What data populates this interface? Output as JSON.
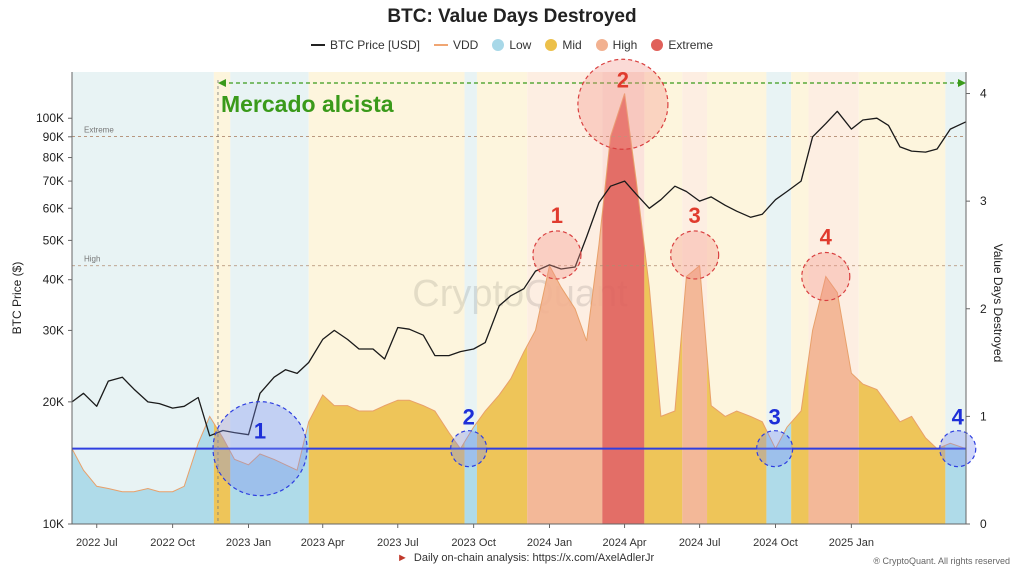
{
  "chart_data": {
    "type": "area",
    "title": "BTC: Value Days Destroyed",
    "legend": {
      "placement": "top-center",
      "items": [
        {
          "label": "BTC Price [USD]",
          "kind": "line",
          "color": "#222222"
        },
        {
          "label": "VDD",
          "kind": "line",
          "color": "#f0a673"
        },
        {
          "label": "Low",
          "kind": "dot",
          "color": "#a8d8e8"
        },
        {
          "label": "Mid",
          "kind": "dot",
          "color": "#ecc04a"
        },
        {
          "label": "High",
          "kind": "dot",
          "color": "#f2b190"
        },
        {
          "label": "Extreme",
          "kind": "dot",
          "color": "#e0605a"
        }
      ]
    },
    "y_left": {
      "label": "BTC Price ($)",
      "scale": "log",
      "range": [
        10000,
        130000
      ],
      "ticks": [
        {
          "label": "10K",
          "value": 10000
        },
        {
          "label": "20K",
          "value": 20000
        },
        {
          "label": "30K",
          "value": 30000
        },
        {
          "label": "40K",
          "value": 40000
        },
        {
          "label": "50K",
          "value": 50000
        },
        {
          "label": "60K",
          "value": 60000
        },
        {
          "label": "70K",
          "value": 70000
        },
        {
          "label": "80K",
          "value": 80000
        },
        {
          "label": "90K",
          "value": 90000
        },
        {
          "label": "100K",
          "value": 100000
        }
      ]
    },
    "y_right": {
      "label": "Value Days Destroyed",
      "range": [
        0,
        4.2
      ],
      "ticks": [
        "0",
        "1",
        "2",
        "3",
        "4"
      ]
    },
    "x_axis": {
      "range": [
        "2022-06-01",
        "2025-05-20"
      ],
      "ticks": [
        {
          "label": "2022 Jul",
          "date": "2022-07-01"
        },
        {
          "label": "2022 Oct",
          "date": "2022-10-01"
        },
        {
          "label": "2023 Jan",
          "date": "2023-01-01"
        },
        {
          "label": "2023 Apr",
          "date": "2023-04-01"
        },
        {
          "label": "2023 Jul",
          "date": "2023-07-01"
        },
        {
          "label": "2023 Oct",
          "date": "2023-10-01"
        },
        {
          "label": "2024 Jan",
          "date": "2024-01-01"
        },
        {
          "label": "2024 Apr",
          "date": "2024-04-01"
        },
        {
          "label": "2024 Jul",
          "date": "2024-07-01"
        },
        {
          "label": "2024 Oct",
          "date": "2024-10-01"
        },
        {
          "label": "2025 Jan",
          "date": "2025-01-01"
        }
      ]
    },
    "thresholds": [
      {
        "label": "Extreme",
        "vdd": 3.6
      },
      {
        "label": "High",
        "vdd": 2.4
      },
      {
        "label": "",
        "vdd": 0.7,
        "color": "#2f3fe0"
      }
    ],
    "btc_price": {
      "dates": [
        "2022-06-01",
        "2022-06-15",
        "2022-07-01",
        "2022-07-15",
        "2022-08-01",
        "2022-08-15",
        "2022-09-01",
        "2022-09-15",
        "2022-10-01",
        "2022-10-15",
        "2022-11-01",
        "2022-11-15",
        "2022-12-01",
        "2022-12-15",
        "2023-01-01",
        "2023-01-15",
        "2023-02-01",
        "2023-02-15",
        "2023-03-01",
        "2023-03-15",
        "2023-04-01",
        "2023-04-15",
        "2023-05-01",
        "2023-05-15",
        "2023-06-01",
        "2023-06-15",
        "2023-07-01",
        "2023-07-15",
        "2023-08-01",
        "2023-08-15",
        "2023-09-01",
        "2023-09-15",
        "2023-10-01",
        "2023-10-15",
        "2023-11-01",
        "2023-11-15",
        "2023-12-01",
        "2023-12-15",
        "2024-01-01",
        "2024-01-15",
        "2024-02-01",
        "2024-02-15",
        "2024-03-01",
        "2024-03-15",
        "2024-04-01",
        "2024-04-15",
        "2024-05-01",
        "2024-05-15",
        "2024-06-01",
        "2024-06-15",
        "2024-07-01",
        "2024-07-15",
        "2024-08-01",
        "2024-08-15",
        "2024-09-01",
        "2024-09-15",
        "2024-10-01",
        "2024-10-15",
        "2024-11-01",
        "2024-11-15",
        "2024-12-01",
        "2024-12-15",
        "2025-01-01",
        "2025-01-15",
        "2025-02-01",
        "2025-02-15",
        "2025-03-01",
        "2025-03-15",
        "2025-04-01",
        "2025-04-15",
        "2025-05-01",
        "2025-05-20"
      ],
      "values": [
        20000,
        21000,
        19500,
        22500,
        23000,
        21500,
        20000,
        19800,
        19300,
        19500,
        20500,
        16500,
        17000,
        16800,
        16600,
        21000,
        23000,
        24000,
        23500,
        25000,
        28500,
        30000,
        28500,
        27000,
        27000,
        25500,
        30500,
        30200,
        29200,
        26000,
        26000,
        26600,
        27000,
        28000,
        34500,
        36500,
        38000,
        42000,
        43500,
        42500,
        43000,
        51000,
        62000,
        68000,
        70000,
        65000,
        60000,
        63000,
        68000,
        66000,
        62500,
        64000,
        61000,
        59000,
        57000,
        58000,
        63000,
        66000,
        70000,
        90000,
        97000,
        104000,
        94000,
        99000,
        100000,
        96000,
        85000,
        83000,
        82500,
        84000,
        94000,
        98000
      ]
    },
    "vdd": {
      "dates": [
        "2022-06-01",
        "2022-06-15",
        "2022-07-01",
        "2022-07-15",
        "2022-08-01",
        "2022-08-15",
        "2022-09-01",
        "2022-09-15",
        "2022-10-01",
        "2022-10-15",
        "2022-11-01",
        "2022-11-15",
        "2022-12-01",
        "2022-12-15",
        "2023-01-01",
        "2023-01-15",
        "2023-02-01",
        "2023-02-15",
        "2023-03-01",
        "2023-03-15",
        "2023-04-01",
        "2023-04-15",
        "2023-05-01",
        "2023-05-15",
        "2023-06-01",
        "2023-06-15",
        "2023-07-01",
        "2023-07-15",
        "2023-08-01",
        "2023-08-15",
        "2023-09-01",
        "2023-09-15",
        "2023-10-01",
        "2023-10-15",
        "2023-11-01",
        "2023-11-15",
        "2023-12-01",
        "2023-12-15",
        "2024-01-01",
        "2024-01-15",
        "2024-02-01",
        "2024-02-15",
        "2024-03-01",
        "2024-03-15",
        "2024-04-01",
        "2024-04-15",
        "2024-05-01",
        "2024-05-15",
        "2024-06-01",
        "2024-06-15",
        "2024-07-01",
        "2024-07-15",
        "2024-08-01",
        "2024-08-15",
        "2024-09-01",
        "2024-09-15",
        "2024-10-01",
        "2024-10-15",
        "2024-11-01",
        "2024-11-15",
        "2024-12-01",
        "2024-12-15",
        "2025-01-01",
        "2025-01-15",
        "2025-02-01",
        "2025-02-15",
        "2025-03-01",
        "2025-03-15",
        "2025-04-01",
        "2025-04-15",
        "2025-05-01",
        "2025-05-20"
      ],
      "values": [
        0.7,
        0.5,
        0.35,
        0.33,
        0.3,
        0.3,
        0.33,
        0.3,
        0.3,
        0.35,
        0.75,
        1.0,
        0.8,
        0.6,
        0.55,
        0.65,
        0.6,
        0.55,
        0.5,
        0.95,
        1.2,
        1.1,
        1.1,
        1.05,
        1.05,
        1.1,
        1.15,
        1.15,
        1.1,
        1.05,
        0.85,
        0.7,
        0.9,
        1.05,
        1.2,
        1.35,
        1.6,
        1.8,
        2.4,
        2.2,
        2.0,
        1.7,
        2.6,
        3.6,
        4.0,
        3.2,
        2.2,
        1.0,
        1.05,
        2.3,
        2.4,
        1.1,
        1.0,
        1.05,
        1.0,
        0.95,
        0.7,
        0.9,
        1.05,
        1.8,
        2.3,
        2.15,
        1.4,
        1.3,
        1.25,
        1.1,
        0.95,
        1.0,
        0.8,
        0.7,
        0.75,
        0.7
      ]
    },
    "regimes": [
      {
        "level": "Low",
        "start": "2022-06-01",
        "end": "2022-11-20"
      },
      {
        "level": "Mid",
        "start": "2022-11-20",
        "end": "2022-12-10"
      },
      {
        "level": "Low",
        "start": "2022-12-10",
        "end": "2023-03-15"
      },
      {
        "level": "Mid",
        "start": "2023-03-15",
        "end": "2023-09-20"
      },
      {
        "level": "Low",
        "start": "2023-09-20",
        "end": "2023-10-05"
      },
      {
        "level": "Mid",
        "start": "2023-10-05",
        "end": "2023-12-05"
      },
      {
        "level": "High",
        "start": "2023-12-05",
        "end": "2024-03-05"
      },
      {
        "level": "Extreme",
        "start": "2024-03-05",
        "end": "2024-04-25"
      },
      {
        "level": "Mid",
        "start": "2024-04-25",
        "end": "2024-06-10"
      },
      {
        "level": "High",
        "start": "2024-06-10",
        "end": "2024-07-10"
      },
      {
        "level": "Mid",
        "start": "2024-07-10",
        "end": "2024-09-20"
      },
      {
        "level": "Low",
        "start": "2024-09-20",
        "end": "2024-10-20"
      },
      {
        "level": "Mid",
        "start": "2024-10-20",
        "end": "2024-11-10"
      },
      {
        "level": "High",
        "start": "2024-11-10",
        "end": "2025-01-10"
      },
      {
        "level": "Mid",
        "start": "2025-01-10",
        "end": "2025-04-25"
      },
      {
        "level": "Low",
        "start": "2025-04-25",
        "end": "2025-05-20"
      }
    ],
    "circles": [
      {
        "label": "1",
        "color": "blue",
        "date": "2023-01-15",
        "vdd": 0.7
      },
      {
        "label": "2",
        "color": "blue",
        "date": "2023-09-25",
        "vdd": 0.7
      },
      {
        "label": "3",
        "color": "blue",
        "date": "2024-09-30",
        "vdd": 0.7
      },
      {
        "label": "4",
        "color": "blue",
        "date": "2025-05-10",
        "vdd": 0.7
      },
      {
        "label": "1",
        "color": "red",
        "date": "2024-01-10",
        "vdd": 2.5
      },
      {
        "label": "2",
        "color": "red",
        "date": "2024-03-30",
        "vdd": 3.9
      },
      {
        "label": "3",
        "color": "red",
        "date": "2024-06-25",
        "vdd": 2.5
      },
      {
        "label": "4",
        "color": "red",
        "date": "2024-12-01",
        "vdd": 2.3
      }
    ],
    "annotation": {
      "text": "Mercado alcista",
      "start": "2022-11-25",
      "end": "2025-05-20",
      "color": "#3a9a1a"
    },
    "watermark": "CryptoQuant",
    "grid": false
  },
  "footer": {
    "text": "Daily on-chain analysis: https://x.com/AxelAdlerJr"
  },
  "copyright": "® CryptoQuant. All rights reserved"
}
